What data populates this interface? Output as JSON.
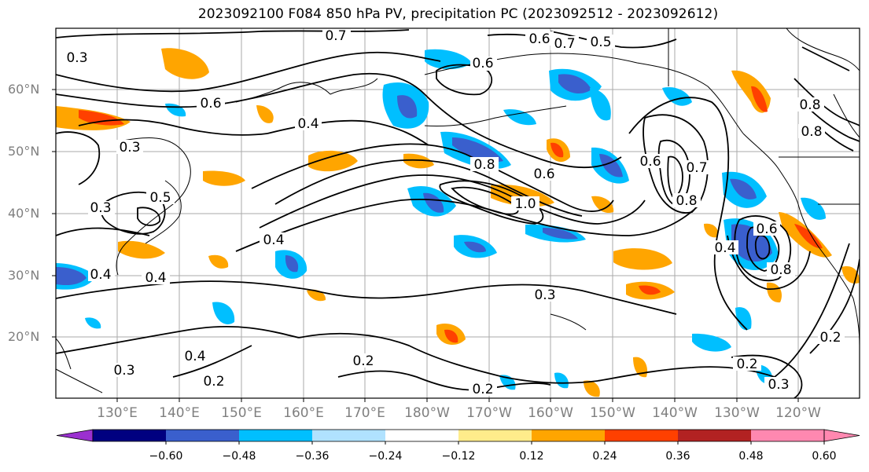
{
  "title": "2023092100 F084 850 hPa PV, precipitation PC (2023092512 - 2023092612)",
  "lat_labels": [
    "60°N",
    "50°N",
    "40°N",
    "30°N",
    "20°N"
  ],
  "lon_labels": [
    "130°E",
    "140°E",
    "150°E",
    "160°E",
    "170°E",
    "180°W",
    "170°W",
    "160°W",
    "150°W",
    "140°W",
    "130°W",
    "120°W"
  ],
  "contour_labels": [
    "0.7",
    "0.6",
    "0.5",
    "0.7",
    "0.6",
    "0.6",
    "0.4",
    "0.3",
    "0.8",
    "0.5",
    "0.3",
    "0.4",
    "0.4",
    "0.4",
    "1.0",
    "0.8",
    "0.6",
    "0.6",
    "0.7",
    "0.8",
    "0.4",
    "0.6",
    "0.8",
    "0.3",
    "0.2",
    "0.3",
    "0.4",
    "0.2",
    "0.2",
    "0.2",
    "0.3",
    "0.2",
    "0.3",
    "0.8"
  ],
  "colorbar": {
    "ticks": [
      "−0.60",
      "−0.48",
      "−0.36",
      "−0.24",
      "−0.12",
      "0.12",
      "0.24",
      "0.36",
      "0.48",
      "0.60"
    ],
    "colors": [
      "#9b30d0",
      "#000080",
      "#3a5fcd",
      "#00bfff",
      "#b0e2ff",
      "#ffffff",
      "#ffec8b",
      "#ffa500",
      "#ff4000",
      "#b22222",
      "#ff88b0",
      "#ff88b0"
    ]
  }
}
